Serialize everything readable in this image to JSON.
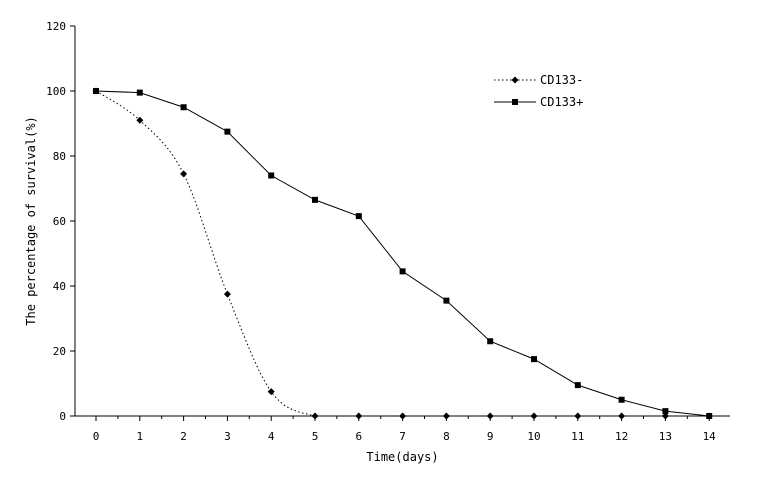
{
  "chart_data": {
    "type": "line",
    "title": "",
    "xlabel": "Time(days)",
    "ylabel": "The percentage of survival(%)",
    "xlim": [
      0,
      14
    ],
    "ylim": [
      0,
      120
    ],
    "x_ticks": [
      "0",
      "1",
      "2",
      "3",
      "4",
      "5",
      "6",
      "7",
      "8",
      "9",
      "10",
      "11",
      "12",
      "13",
      "14"
    ],
    "y_ticks": [
      "0",
      "20",
      "40",
      "60",
      "80",
      "100",
      "120"
    ],
    "grid": false,
    "legend_position": "top-right",
    "x": [
      0,
      1,
      2,
      3,
      4,
      5,
      6,
      7,
      8,
      9,
      10,
      11,
      12,
      13,
      14
    ],
    "series": [
      {
        "name": "CD133-",
        "line_style": "dotted",
        "marker": "diamond",
        "smooth": true,
        "values": [
          100,
          91,
          74.5,
          37.5,
          7.5,
          0,
          0,
          0,
          0,
          0,
          0,
          0,
          0,
          0,
          0
        ]
      },
      {
        "name": "CD133+",
        "line_style": "solid",
        "marker": "square",
        "smooth": false,
        "values": [
          100,
          99.5,
          95,
          87.5,
          74,
          66.5,
          61.5,
          44.5,
          35.5,
          23,
          17.5,
          9.5,
          5,
          1.5,
          0
        ]
      }
    ],
    "colors": {
      "line": "#000000",
      "background": "#ffffff"
    }
  }
}
